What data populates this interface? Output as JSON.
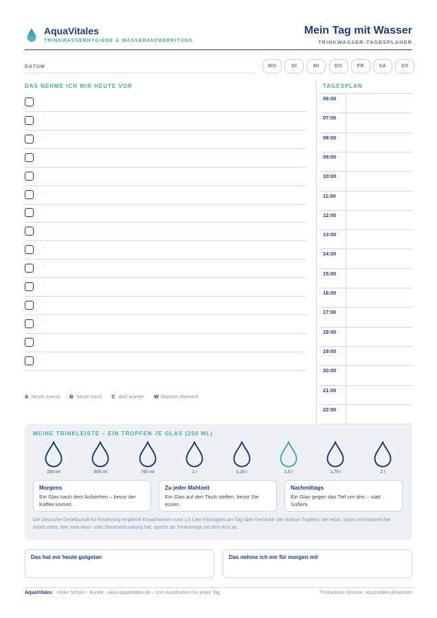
{
  "header": {
    "brand": "AquaVitales",
    "tagline": "TRINKWASSERHYGIENE & WASSERAUFBEREITUNG",
    "title": "Mein Tag mit Wasser",
    "subtitle": "TRINKWASSER-TAGESPLANER"
  },
  "date": {
    "label": "DATUM",
    "days": [
      "MO",
      "DI",
      "MI",
      "DO",
      "FR",
      "SA",
      "SO"
    ]
  },
  "todo": {
    "title": "DAS NEHME ICH MIR HEUTE VOR",
    "items": [
      "·",
      "·",
      "·",
      "·",
      "·",
      "·",
      "·",
      "·",
      "·",
      "·",
      "·",
      "·",
      "·",
      "·",
      "·"
    ],
    "legend": [
      {
        "key": "A",
        "text": "heute zuerst"
      },
      {
        "key": "B",
        "text": "heute noch"
      },
      {
        "key": "C",
        "text": "darf warten"
      },
      {
        "key": "W",
        "text": "Wasser-Moment"
      }
    ]
  },
  "schedule": {
    "title": "TAGESPLAN",
    "hours": [
      "06:00",
      "07:00",
      "08:00",
      "09:00",
      "10:00",
      "11:00",
      "12:00",
      "13:00",
      "14:00",
      "15:00",
      "16:00",
      "17:00",
      "18:00",
      "19:00",
      "20:00",
      "21:00",
      "22:00"
    ]
  },
  "drinks": {
    "title": "MEINE TRINKLEISTE – EIN TROPFEN JE GLAS (250 ML)",
    "glasses": [
      {
        "label": "250 ml",
        "color": "#1f3a7a"
      },
      {
        "label": "500 ml",
        "color": "#1f3a7a"
      },
      {
        "label": "750 ml",
        "color": "#1f3a7a"
      },
      {
        "label": "1 l",
        "color": "#1f3a7a"
      },
      {
        "label": "1,25 l",
        "color": "#1f3a7a"
      },
      {
        "label": "1,5 l",
        "color": "#4aa9a0"
      },
      {
        "label": "1,75 l",
        "color": "#1f3a7a"
      },
      {
        "label": "2 l",
        "color": "#1f3a7a"
      }
    ],
    "tips": [
      {
        "title": "Morgens",
        "text": "Ein Glas nach dem Aufstehen – bevor der Kaffee kommt."
      },
      {
        "title": "Zu jeder Mahlzeit",
        "text": "Ein Glas auf den Tisch stellen, bevor Sie essen."
      },
      {
        "title": "Nachmittags",
        "text": "Ein Glas gegen das Tief um drei – statt Süßem."
      }
    ],
    "note": "Die Deutsche Gesellschaft für Ernährung empfiehlt Erwachsenen rund 1,5 Liter Flüssigkeit am Tag über Getränke (der türkise Tropfen); bei Hitze, Sport und körperlicher Arbeit mehr. Wer eine Herz- oder Nierenerkrankung hat, spricht die Trinkmenge mit dem Arzt ab."
  },
  "reflection": [
    "Das hat mir heute gutgetan",
    "Das nehme ich mir für morgen mit"
  ],
  "footer": {
    "brand": "AquaVitales",
    "text": "· Ulrike Schorn · Bunde · www.aquavitales.de – zum Ausdrucken für jeden Tag",
    "right": "Trinkwasser-Wissen: aquavitales.de/wissen"
  }
}
